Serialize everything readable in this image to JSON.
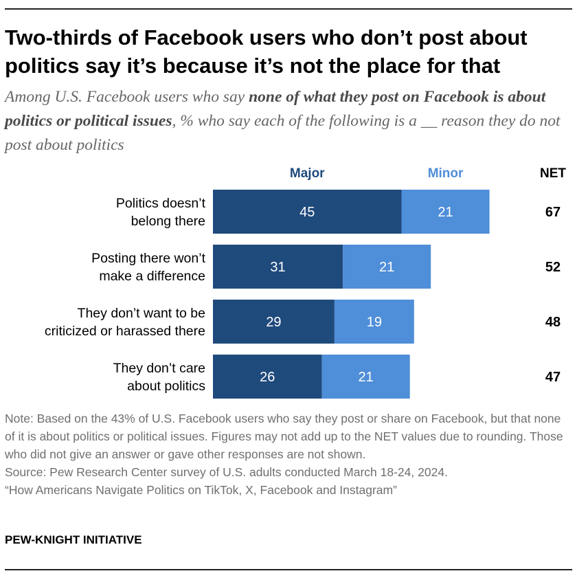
{
  "title": "Two-thirds of Facebook users who don’t post about politics say it’s because it’s not the place for that",
  "subtitle": {
    "pre": "Among U.S. Facebook users who say ",
    "emphasis": "none of what they post on Facebook is about politics or political issues",
    "post": ", % who say each of the following is a __ reason they do not post about politics"
  },
  "chart_data": {
    "type": "bar",
    "orientation": "horizontal",
    "stacked": true,
    "legend_placement": "top",
    "grid": false,
    "categories": [
      [
        "Politics doesn’t",
        "belong there"
      ],
      [
        "Posting there won’t",
        "make a difference"
      ],
      [
        "They don’t want to be",
        "criticized or harassed there"
      ],
      [
        "They don’t care",
        "about politics"
      ]
    ],
    "series": [
      {
        "name": "Major",
        "values": [
          45,
          31,
          29,
          26
        ],
        "color": "#1f4a7c"
      },
      {
        "name": "Minor",
        "values": [
          21,
          21,
          19,
          21
        ],
        "color": "#4f8ed8"
      }
    ],
    "net_label": "NET",
    "net": [
      67,
      52,
      48,
      47
    ],
    "xlim": [
      0,
      100
    ]
  },
  "notes": {
    "note": "Note: Based on the 43% of U.S. Facebook users who say they post or share on Facebook, but that none of it is about politics or political issues. Figures may not add up to the NET values due to rounding. Those who did not give an answer or gave other responses are not shown.",
    "source": "Source: Pew Research Center survey of U.S. adults conducted March 18-24, 2024.",
    "report": "“How Americans Navigate Politics on TikTok, X, Facebook and Instagram”"
  },
  "brand": "PEW-KNIGHT INITIATIVE"
}
